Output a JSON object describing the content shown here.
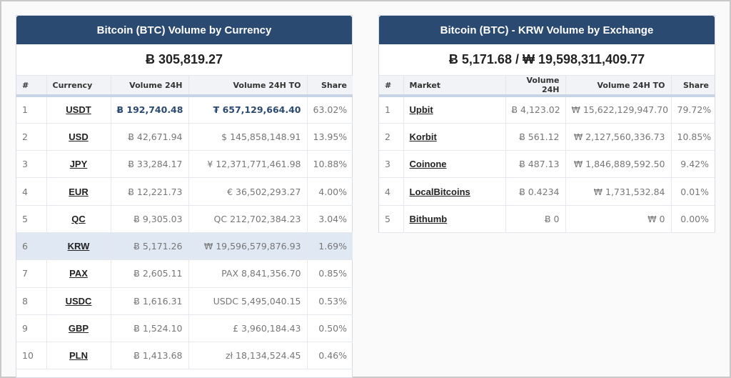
{
  "left": {
    "title": "Bitcoin (BTC) Volume by Currency",
    "total": "Ƀ 305,819.27",
    "columns": [
      "#",
      "Currency",
      "Volume 24H",
      "Volume 24H TO",
      "Share"
    ],
    "rows": [
      {
        "n": "1",
        "name": "USDT",
        "vol": "Ƀ 192,740.48",
        "to": "₮ 657,129,664.40",
        "share": "63.02%"
      },
      {
        "n": "2",
        "name": "USD",
        "vol": "Ƀ 42,671.94",
        "to": "$ 145,858,148.91",
        "share": "13.95%"
      },
      {
        "n": "3",
        "name": "JPY",
        "vol": "Ƀ 33,284.17",
        "to": "¥ 12,371,771,461.98",
        "share": "10.88%"
      },
      {
        "n": "4",
        "name": "EUR",
        "vol": "Ƀ 12,221.73",
        "to": "€ 36,502,293.27",
        "share": "4.00%"
      },
      {
        "n": "5",
        "name": "QC",
        "vol": "Ƀ 9,305.03",
        "to": "QC 212,702,384.23",
        "share": "3.04%"
      },
      {
        "n": "6",
        "name": "KRW",
        "vol": "Ƀ 5,171.26",
        "to": "₩ 19,596,579,876.93",
        "share": "1.69%"
      },
      {
        "n": "7",
        "name": "PAX",
        "vol": "Ƀ 2,605.11",
        "to": "PAX 8,841,356.70",
        "share": "0.85%"
      },
      {
        "n": "8",
        "name": "USDC",
        "vol": "Ƀ 1,616.31",
        "to": "USDC 5,495,040.15",
        "share": "0.53%"
      },
      {
        "n": "9",
        "name": "GBP",
        "vol": "Ƀ 1,524.10",
        "to": "£ 3,960,184.43",
        "share": "0.50%"
      },
      {
        "n": "10",
        "name": "PLN",
        "vol": "Ƀ 1,413.68",
        "to": "zł 18,134,524.45",
        "share": "0.46%"
      }
    ]
  },
  "right": {
    "title": "Bitcoin (BTC) - KRW Volume by Exchange",
    "total": "Ƀ 5,171.68 / ₩ 19,598,311,409.77",
    "columns": [
      "#",
      "Market",
      "Volume 24H",
      "Volume 24H TO",
      "Share"
    ],
    "rows": [
      {
        "n": "1",
        "name": "Upbit",
        "vol": "Ƀ 4,123.02",
        "to": "₩ 15,622,129,947.70",
        "share": "79.72%"
      },
      {
        "n": "2",
        "name": "Korbit",
        "vol": "Ƀ 561.12",
        "to": "₩ 2,127,560,336.73",
        "share": "10.85%"
      },
      {
        "n": "3",
        "name": "Coinone",
        "vol": "Ƀ 487.13",
        "to": "₩ 1,846,889,592.50",
        "share": "9.42%"
      },
      {
        "n": "4",
        "name": "LocalBitcoins",
        "vol": "Ƀ 0.4234",
        "to": "₩ 1,731,532.84",
        "share": "0.01%"
      },
      {
        "n": "5",
        "name": "Bithumb",
        "vol": "Ƀ 0",
        "to": "₩ 0",
        "share": "0.00%"
      }
    ]
  },
  "colors": {
    "header": "#2b4a72",
    "highlight_row": "#dfe8f3",
    "accent_value": "#2b4a72"
  }
}
